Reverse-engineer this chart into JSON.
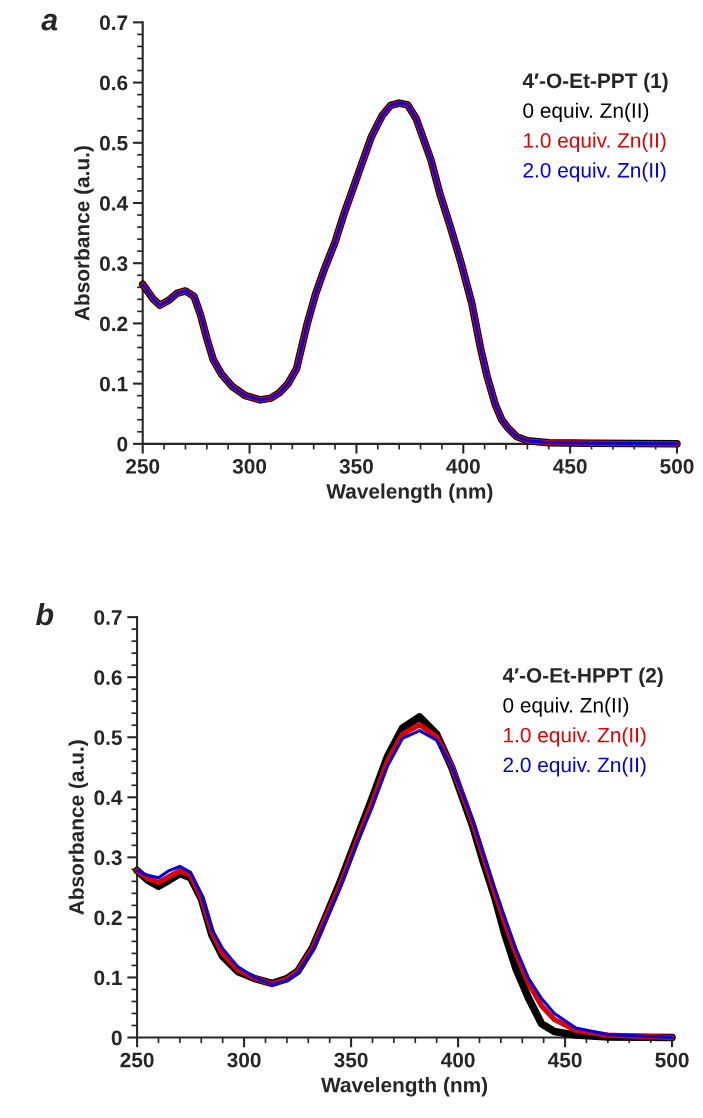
{
  "chart_data": [
    {
      "type": "line",
      "title": "a",
      "xlabel": "Wavelength (nm)",
      "ylabel": "Absorbance (a.u.)",
      "legend_title": "4′-O-Et-PPT (1)",
      "legend": "top right",
      "xlim": [
        250,
        500
      ],
      "xticks": [
        250,
        300,
        350,
        400,
        450,
        500
      ],
      "ylim": [
        0,
        0.7
      ],
      "yticks": [
        0,
        0.1,
        0.2,
        0.3,
        0.4,
        0.5,
        0.6,
        0.7
      ],
      "x": [
        250,
        255,
        258,
        262,
        266,
        270,
        274,
        277,
        280,
        283,
        287,
        292,
        298,
        305,
        310,
        314,
        318,
        322,
        327,
        331,
        335,
        340,
        344,
        350,
        357,
        362,
        366,
        370,
        374,
        378,
        381,
        385,
        389,
        394,
        399,
        404,
        408,
        411,
        415,
        418,
        421,
        425,
        430,
        440,
        460,
        500
      ],
      "series": [
        {
          "name": "0 equiv. Zn(II)",
          "color": "#000000",
          "values": [
            0.265,
            0.24,
            0.23,
            0.238,
            0.25,
            0.254,
            0.245,
            0.215,
            0.175,
            0.14,
            0.115,
            0.095,
            0.08,
            0.073,
            0.076,
            0.085,
            0.1,
            0.125,
            0.2,
            0.25,
            0.29,
            0.335,
            0.38,
            0.44,
            0.51,
            0.545,
            0.562,
            0.566,
            0.563,
            0.54,
            0.51,
            0.47,
            0.416,
            0.36,
            0.3,
            0.233,
            0.16,
            0.114,
            0.065,
            0.04,
            0.026,
            0.012,
            0.005,
            0.002,
            0.001,
            0
          ]
        },
        {
          "name": "1.0 equiv. Zn(II)",
          "color": "#e00000",
          "values": [
            0.265,
            0.24,
            0.23,
            0.238,
            0.25,
            0.254,
            0.245,
            0.215,
            0.175,
            0.14,
            0.115,
            0.095,
            0.08,
            0.073,
            0.076,
            0.085,
            0.1,
            0.125,
            0.2,
            0.25,
            0.29,
            0.335,
            0.38,
            0.44,
            0.51,
            0.545,
            0.562,
            0.566,
            0.563,
            0.54,
            0.51,
            0.47,
            0.416,
            0.36,
            0.3,
            0.233,
            0.16,
            0.114,
            0.065,
            0.04,
            0.026,
            0.012,
            0.005,
            0.002,
            0.001,
            0
          ]
        },
        {
          "name": "2.0 equiv. Zn(II)",
          "color": "#0000e0",
          "values": [
            0.265,
            0.24,
            0.23,
            0.238,
            0.25,
            0.254,
            0.245,
            0.215,
            0.175,
            0.14,
            0.115,
            0.095,
            0.08,
            0.073,
            0.076,
            0.085,
            0.1,
            0.125,
            0.2,
            0.25,
            0.29,
            0.335,
            0.38,
            0.44,
            0.51,
            0.545,
            0.562,
            0.566,
            0.563,
            0.54,
            0.51,
            0.47,
            0.416,
            0.36,
            0.3,
            0.233,
            0.16,
            0.114,
            0.065,
            0.04,
            0.026,
            0.012,
            0.005,
            0.002,
            0.001,
            0
          ]
        }
      ]
    },
    {
      "type": "line",
      "title": "b",
      "xlabel": "Wavelength (nm)",
      "ylabel": "Absorbance (a.u.)",
      "legend_title": "4′-O-Et-HPPT (2)",
      "legend": "top right",
      "xlim": [
        250,
        500
      ],
      "xticks": [
        250,
        300,
        350,
        400,
        450,
        500
      ],
      "ylim": [
        0,
        0.7
      ],
      "yticks": [
        0,
        0.1,
        0.2,
        0.3,
        0.4,
        0.5,
        0.6,
        0.7
      ],
      "x": [
        250,
        255,
        260,
        265,
        270,
        275,
        280,
        285,
        290,
        297,
        305,
        313,
        320,
        325,
        332,
        338,
        345,
        353,
        360,
        367,
        374,
        382,
        390,
        397,
        403,
        407,
        412,
        417,
        422,
        427,
        433,
        439,
        445,
        455,
        470,
        500
      ],
      "series": [
        {
          "name": "0 equiv. Zn(II)",
          "color": "#000000",
          "values": [
            0.278,
            0.262,
            0.252,
            0.262,
            0.273,
            0.266,
            0.231,
            0.17,
            0.135,
            0.11,
            0.098,
            0.09,
            0.098,
            0.11,
            0.15,
            0.2,
            0.26,
            0.335,
            0.4,
            0.468,
            0.515,
            0.534,
            0.505,
            0.45,
            0.39,
            0.35,
            0.29,
            0.235,
            0.17,
            0.115,
            0.065,
            0.023,
            0.01,
            0.004,
            0.001,
            0
          ]
        },
        {
          "name": "1.0 equiv. Zn(II)",
          "color": "#e00000",
          "values": [
            0.278,
            0.265,
            0.258,
            0.268,
            0.278,
            0.27,
            0.233,
            0.175,
            0.14,
            0.113,
            0.099,
            0.089,
            0.097,
            0.11,
            0.148,
            0.198,
            0.255,
            0.33,
            0.392,
            0.46,
            0.505,
            0.521,
            0.5,
            0.452,
            0.395,
            0.356,
            0.3,
            0.243,
            0.19,
            0.141,
            0.09,
            0.053,
            0.03,
            0.012,
            0.004,
            0
          ]
        },
        {
          "name": "2.0 equiv. Zn(II)",
          "color": "#0000e0",
          "values": [
            0.278,
            0.27,
            0.266,
            0.278,
            0.285,
            0.275,
            0.238,
            0.18,
            0.148,
            0.118,
            0.1,
            0.088,
            0.095,
            0.108,
            0.145,
            0.193,
            0.25,
            0.325,
            0.385,
            0.452,
            0.498,
            0.511,
            0.495,
            0.452,
            0.398,
            0.36,
            0.305,
            0.25,
            0.198,
            0.148,
            0.098,
            0.065,
            0.04,
            0.016,
            0.005,
            0
          ]
        }
      ]
    }
  ]
}
